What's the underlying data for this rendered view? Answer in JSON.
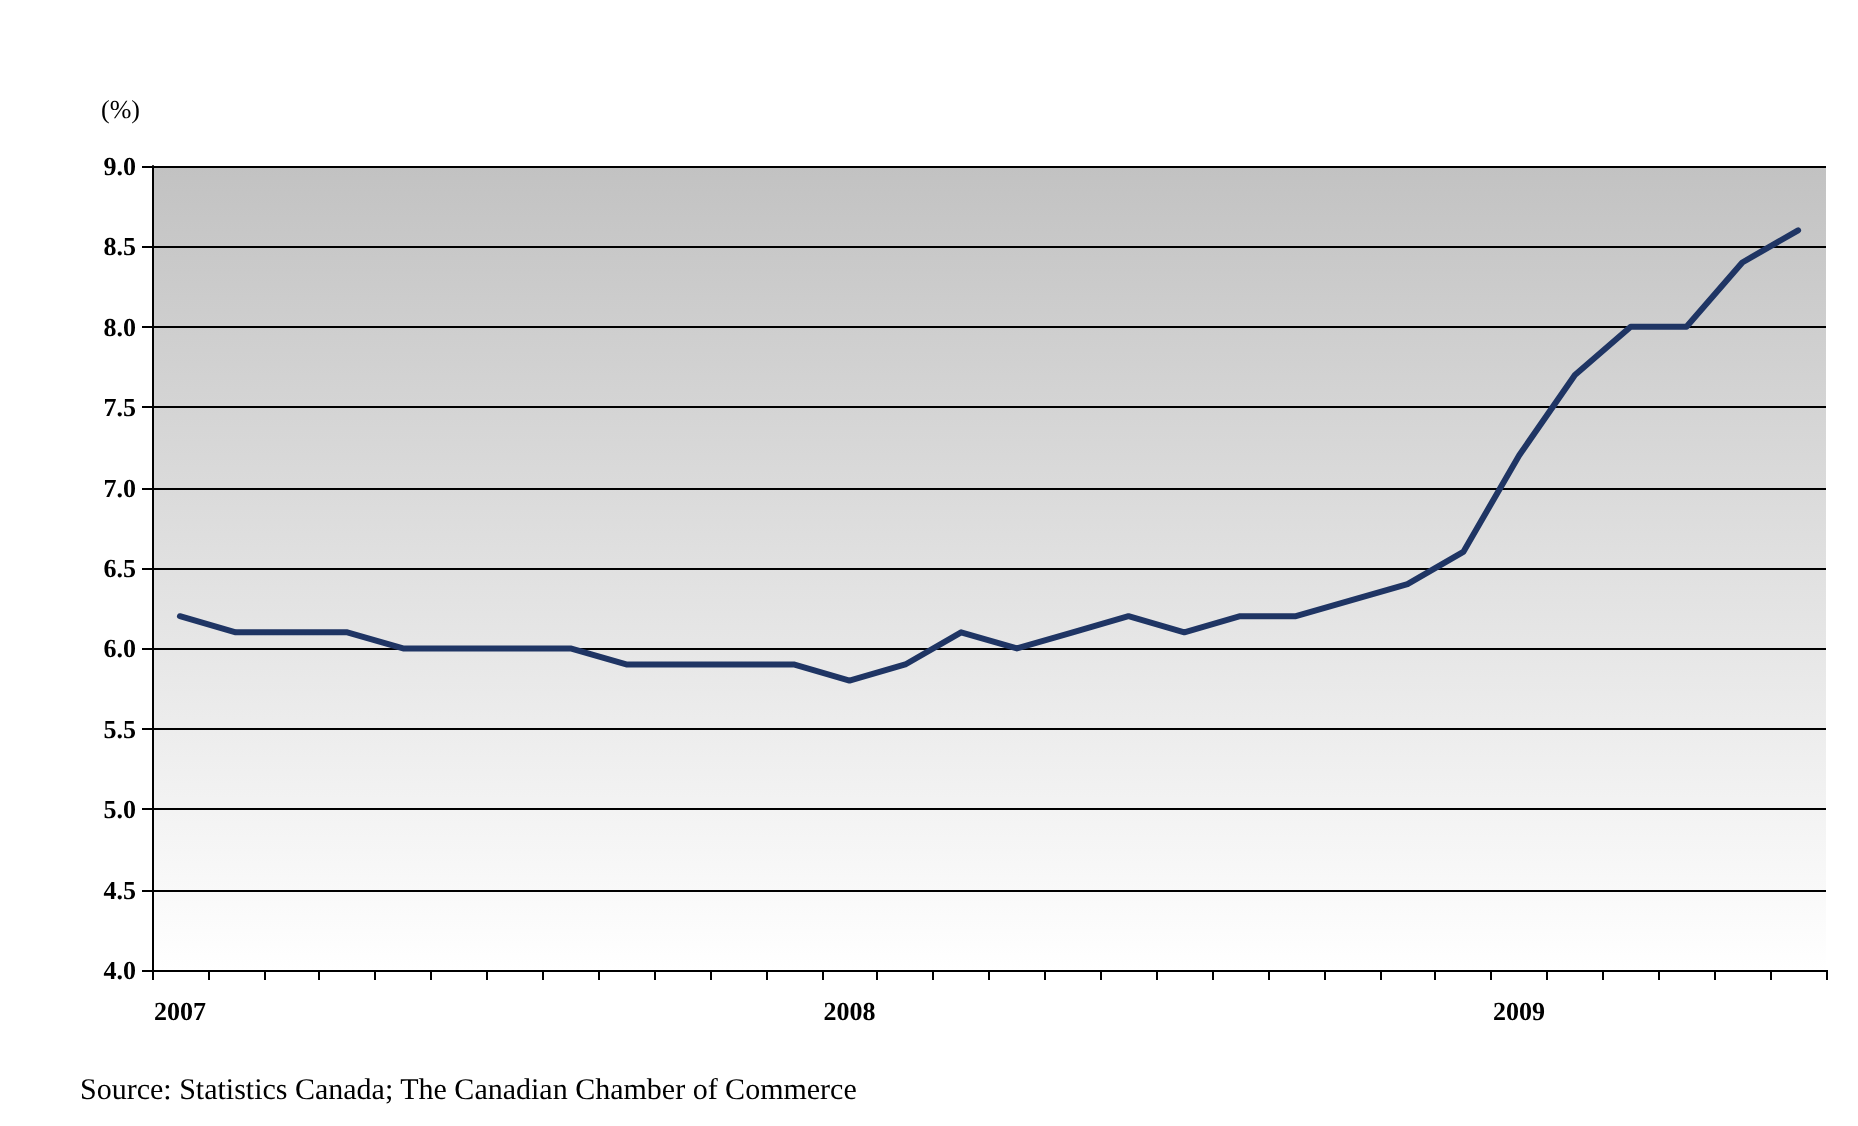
{
  "chart_data": {
    "type": "line",
    "ylabel": "(%)",
    "categories": [
      "2007",
      null,
      null,
      null,
      null,
      null,
      null,
      null,
      null,
      null,
      null,
      null,
      "2008",
      null,
      null,
      null,
      null,
      null,
      null,
      null,
      null,
      null,
      null,
      null,
      "2009",
      null,
      null,
      null,
      null,
      null
    ],
    "series": [
      {
        "color": "#1f3564",
        "values": [
          6.2,
          6.1,
          6.1,
          6.1,
          6.0,
          6.0,
          6.0,
          6.0,
          5.9,
          5.9,
          5.9,
          5.9,
          5.8,
          5.9,
          6.1,
          6.0,
          6.1,
          6.2,
          6.1,
          6.2,
          6.2,
          6.3,
          6.4,
          6.6,
          7.2,
          7.7,
          8.0,
          8.0,
          8.4,
          8.6
        ]
      }
    ],
    "ylim": [
      4,
      9
    ],
    "yticks": [
      {
        "value": 4,
        "label": "4.0"
      },
      {
        "value": 4.5,
        "label": "4.5"
      },
      {
        "value": 5,
        "label": "5.0"
      },
      {
        "value": 5.5,
        "label": "5.5"
      },
      {
        "value": 6,
        "label": "6.0"
      },
      {
        "value": 6.5,
        "label": "6.5"
      },
      {
        "value": 7,
        "label": "7.0"
      },
      {
        "value": 7.5,
        "label": "7.5"
      },
      {
        "value": 8,
        "label": "8.0"
      },
      {
        "value": 8.5,
        "label": "8.5"
      },
      {
        "value": 9,
        "label": "9.0"
      }
    ],
    "grid": "y",
    "marker": "none",
    "line_style": "solid",
    "annotations": [
      "Source: Statistics Canada; The Canadian Chamber of Commerce"
    ]
  }
}
